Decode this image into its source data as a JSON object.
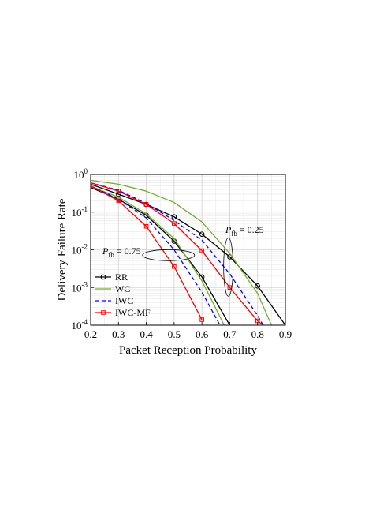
{
  "chart_data": {
    "type": "line",
    "xlabel": "Packet Reception Probability",
    "ylabel": "Delivery Failure Rate",
    "xlim": [
      0.2,
      0.9
    ],
    "ylim": [
      0.0001,
      1
    ],
    "yscale": "log",
    "grid": true,
    "legend_position": "lower-left",
    "x_ticks": [
      "0.2",
      "0.3",
      "0.4",
      "0.5",
      "0.6",
      "0.7",
      "0.8",
      "0.9"
    ],
    "y_ticks": [
      {
        "base": "10",
        "exp": "0",
        "value": 1
      },
      {
        "base": "10",
        "exp": "-1",
        "value": 0.1
      },
      {
        "base": "10",
        "exp": "-2",
        "value": 0.01
      },
      {
        "base": "10",
        "exp": "-3",
        "value": 0.001
      },
      {
        "base": "10",
        "exp": "-4",
        "value": 0.0001
      }
    ],
    "series": [
      {
        "name": "RR",
        "color": "#000000",
        "style": "solid",
        "marker": "circle",
        "x": [
          0.2,
          0.3,
          0.4,
          0.5,
          0.6,
          0.7,
          0.8,
          0.9
        ],
        "y": [
          0.55,
          0.3,
          0.16,
          0.075,
          0.026,
          0.0065,
          0.0011,
          0.0001
        ]
      },
      {
        "name": "WC",
        "color": "#77ac30",
        "style": "solid",
        "marker": "none",
        "x": [
          0.2,
          0.3,
          0.4,
          0.5,
          0.6,
          0.7,
          0.8,
          0.85
        ],
        "y": [
          0.7,
          0.55,
          0.36,
          0.18,
          0.055,
          0.008,
          0.0007,
          0.0001
        ]
      },
      {
        "name": "IWC",
        "color": "#0000ff",
        "style": "dashed",
        "marker": "none",
        "x": [
          0.2,
          0.3,
          0.4,
          0.5,
          0.6,
          0.7,
          0.8,
          0.82
        ],
        "y": [
          0.6,
          0.38,
          0.17,
          0.06,
          0.018,
          0.0023,
          0.00018,
          0.0001
        ]
      },
      {
        "name": "IWC-MF",
        "color": "#ff0000",
        "style": "solid",
        "marker": "square",
        "x": [
          0.2,
          0.3,
          0.4,
          0.5,
          0.6,
          0.7,
          0.8,
          0.82
        ],
        "y": [
          0.6,
          0.36,
          0.16,
          0.05,
          0.0095,
          0.001,
          0.00013,
          0.0001
        ]
      },
      {
        "name": "",
        "color": "#000000",
        "style": "solid",
        "marker": "circle",
        "x": [
          0.2,
          0.3,
          0.4,
          0.5,
          0.6,
          0.7
        ],
        "y": [
          0.45,
          0.22,
          0.082,
          0.017,
          0.0019,
          0.0001
        ]
      },
      {
        "name": "",
        "color": "#77ac30",
        "style": "solid",
        "marker": "none",
        "x": [
          0.2,
          0.3,
          0.4,
          0.5,
          0.6,
          0.68
        ],
        "y": [
          0.48,
          0.25,
          0.09,
          0.02,
          0.0015,
          0.0001
        ]
      },
      {
        "name": "",
        "color": "#0000ff",
        "style": "dashed",
        "marker": "none",
        "x": [
          0.2,
          0.3,
          0.4,
          0.5,
          0.6,
          0.665
        ],
        "y": [
          0.5,
          0.22,
          0.07,
          0.01,
          0.00075,
          0.0001
        ]
      },
      {
        "name": "",
        "color": "#ff0000",
        "style": "solid",
        "marker": "square",
        "x": [
          0.2,
          0.3,
          0.4,
          0.5,
          0.6
        ],
        "y": [
          0.5,
          0.2,
          0.042,
          0.0036,
          0.00014
        ]
      }
    ],
    "annotations": [
      {
        "prefix": "P",
        "sub": "fb",
        "text": "= 0.25",
        "x": 0.7,
        "y": 0.035
      },
      {
        "prefix": "P",
        "sub": "fb",
        "text": "= 0.75",
        "x": 0.32,
        "y": 0.0075
      }
    ]
  }
}
